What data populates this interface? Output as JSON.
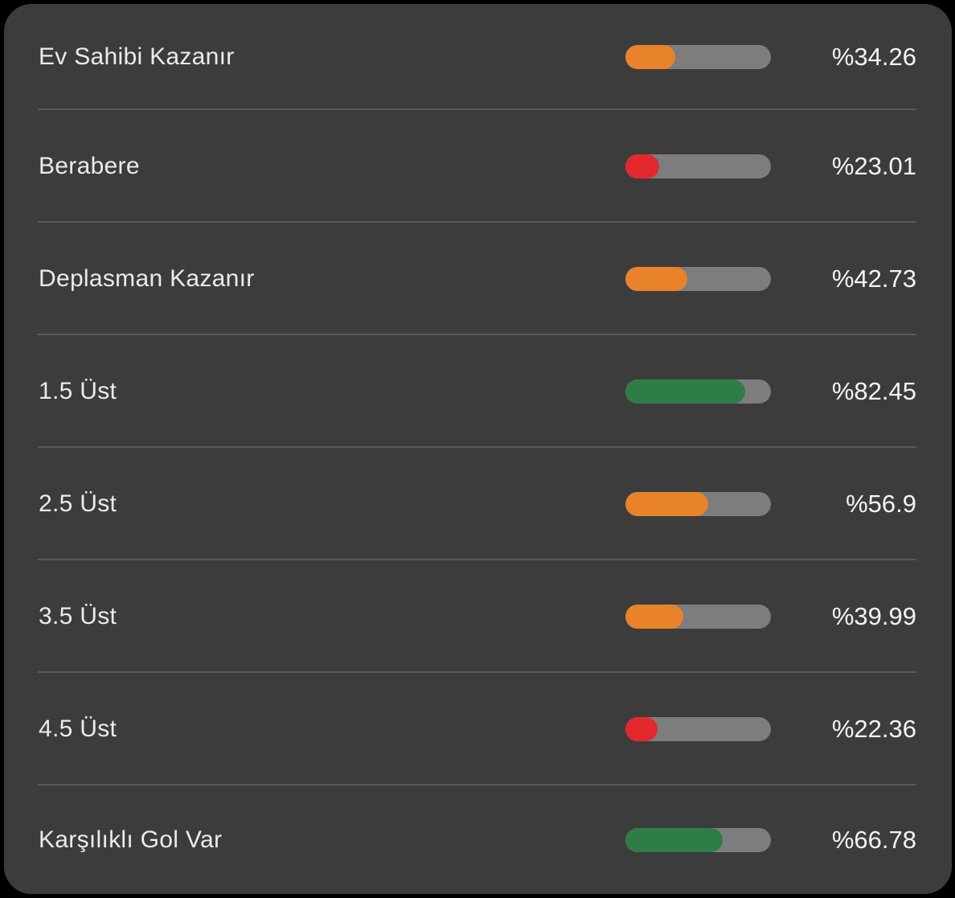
{
  "panel": {
    "rows": [
      {
        "label": "Ev Sahibi Kazanır",
        "percent_label": "%34.26",
        "value": 34.26,
        "color": "#e8832b"
      },
      {
        "label": "Berabere",
        "percent_label": "%23.01",
        "value": 23.01,
        "color": "#e3292d"
      },
      {
        "label": "Deplasman Kazanır",
        "percent_label": "%42.73",
        "value": 42.73,
        "color": "#e8832b"
      },
      {
        "label": "1.5 Üst",
        "percent_label": "%82.45",
        "value": 82.45,
        "color": "#2e7d46"
      },
      {
        "label": "2.5 Üst",
        "percent_label": "%56.9",
        "value": 56.9,
        "color": "#e8832b"
      },
      {
        "label": "3.5 Üst",
        "percent_label": "%39.99",
        "value": 39.99,
        "color": "#e8832b"
      },
      {
        "label": "4.5 Üst",
        "percent_label": "%22.36",
        "value": 22.36,
        "color": "#e3292d"
      },
      {
        "label": "Karşılıklı Gol Var",
        "percent_label": "%66.78",
        "value": 66.78,
        "color": "#2e7d46"
      }
    ]
  },
  "colors": {
    "outer_background": "#000000",
    "card_background": "#3d3c3c",
    "divider": "#5a5a5a",
    "bar_track": "#7d7d7d",
    "bar_low": "#e3292d",
    "bar_mid": "#e8832b",
    "bar_high": "#2e7d46",
    "label_text": "#ebebeb",
    "value_text": "#f4f4f4"
  }
}
